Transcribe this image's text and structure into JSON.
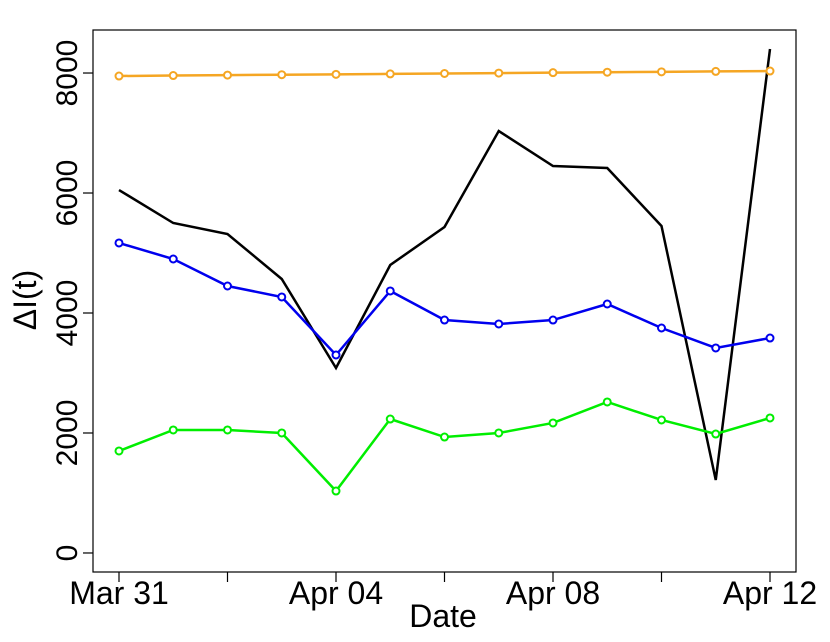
{
  "chart_data": {
    "type": "line",
    "xlabel": "Date",
    "ylabel": "ΔI(t)",
    "categories": [
      "Mar 31",
      null,
      null,
      null,
      "Apr 04",
      null,
      null,
      null,
      "Apr 08",
      null,
      null,
      null,
      "Apr 12"
    ],
    "series": [
      {
        "color": "#000000",
        "markers": false,
        "values": [
          6050,
          5500,
          5317,
          4567,
          3083,
          4800,
          5433,
          7033,
          6450,
          6417,
          5450,
          1217,
          8400
        ]
      },
      {
        "color": "#0000ee",
        "markers": true,
        "values": [
          5167,
          4900,
          4450,
          4267,
          3300,
          4367,
          3883,
          3817,
          3883,
          4150,
          3750,
          3417,
          3583
        ]
      },
      {
        "color": "#00ee00",
        "markers": true,
        "values": [
          1700,
          2050,
          2050,
          2000,
          1033,
          2233,
          1933,
          2000,
          2167,
          2517,
          2217,
          1983,
          2250
        ]
      },
      {
        "color": "#f5a623",
        "markers": true,
        "values": [
          7950,
          7958,
          7965,
          7972,
          7978,
          7985,
          7992,
          7999,
          8006,
          8013,
          8020,
          8027,
          8033
        ]
      }
    ],
    "ylim": [
      -317,
      8717
    ],
    "yticks": [
      0,
      2000,
      4000,
      6000,
      8000
    ]
  }
}
